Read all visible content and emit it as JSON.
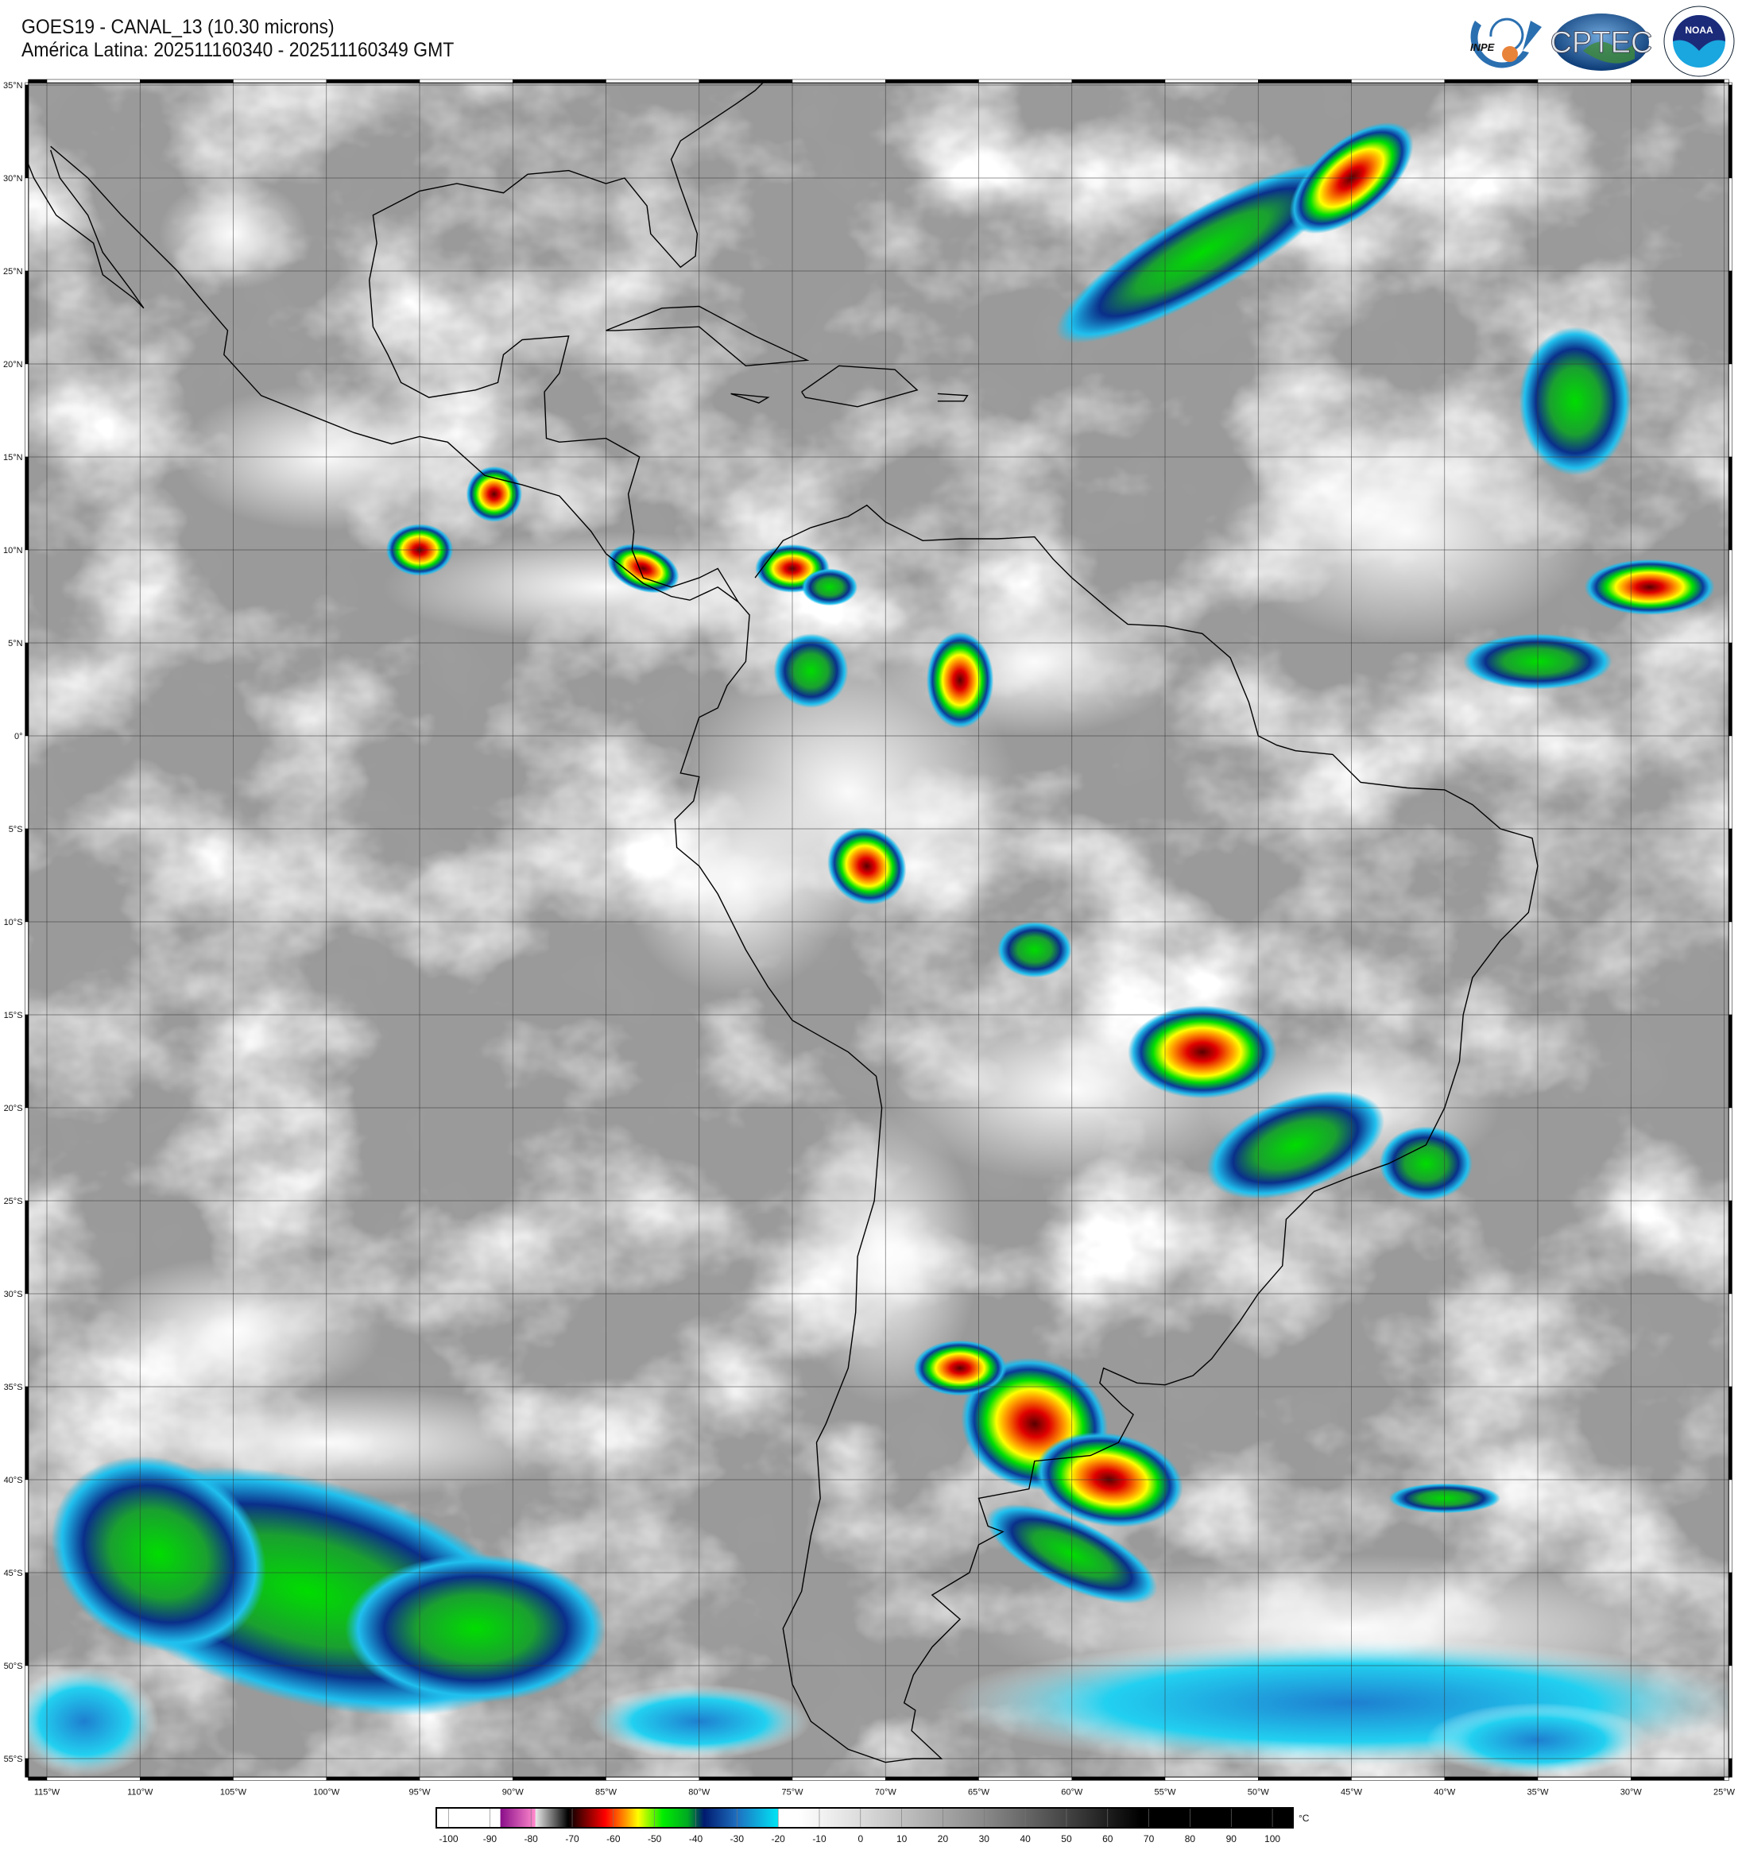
{
  "header": {
    "title_line1": "GOES19 - CANAL_13 (10.30 microns)",
    "title_line2": "América Latina: 202511160340 - 202511160349 GMT"
  },
  "logos": [
    {
      "name": "INPE",
      "text": "INPE"
    },
    {
      "name": "CPTEC",
      "text": "CPTEC"
    },
    {
      "name": "NOAA",
      "text": "NOAA",
      "ring_text": "NATIONAL OCEANIC AND ATMOSPHERIC ADMINISTRATION · U.S. DEPARTMENT OF COMMERCE"
    }
  ],
  "map": {
    "lat_labels": [
      "35°N",
      "30°N",
      "25°N",
      "20°N",
      "15°N",
      "10°N",
      "5°N",
      "0°",
      "5°S",
      "10°S",
      "15°S",
      "20°S",
      "25°S",
      "30°S",
      "35°S",
      "40°S",
      "45°S",
      "50°S",
      "55°S"
    ],
    "lon_labels": [
      "115°W",
      "110°W",
      "105°W",
      "100°W",
      "95°W",
      "90°W",
      "85°W",
      "80°W",
      "75°W",
      "70°W",
      "65°W",
      "60°W",
      "55°W",
      "50°W",
      "45°W",
      "40°W",
      "35°W",
      "30°W",
      "25°W"
    ],
    "lat_range": [
      35,
      -56
    ],
    "lon_range": [
      -116,
      -25
    ],
    "grid_step_deg": 5,
    "background_color": "#9a9a9a"
  },
  "colorbar": {
    "unit": "°C",
    "ticks": [
      "-100",
      "-90",
      "-80",
      "-70",
      "-60",
      "-50",
      "-40",
      "-30",
      "-20",
      "-10",
      "0",
      "10",
      "20",
      "30",
      "40",
      "50",
      "60",
      "70",
      "80",
      "90",
      "100"
    ],
    "range": [
      -103,
      105
    ],
    "stops": [
      {
        "t": -103,
        "c": "#ffffff"
      },
      {
        "t": -87.5,
        "c": "#ffffff"
      },
      {
        "t": -87.4,
        "c": "#8a0f8a"
      },
      {
        "t": -79,
        "c": "#ff88cc"
      },
      {
        "t": -78.9,
        "c": "#e8e8e8"
      },
      {
        "t": -72,
        "c": "#202020"
      },
      {
        "t": -71,
        "c": "#000000"
      },
      {
        "t": -62,
        "c": "#ff0000"
      },
      {
        "t": -57,
        "c": "#ff9900"
      },
      {
        "t": -54,
        "c": "#ffff00"
      },
      {
        "t": -48,
        "c": "#00ee00"
      },
      {
        "t": -42,
        "c": "#00aa22"
      },
      {
        "t": -38,
        "c": "#001a6e"
      },
      {
        "t": -30,
        "c": "#1e6fc0"
      },
      {
        "t": -20,
        "c": "#00e5f5"
      },
      {
        "t": -19.9,
        "c": "#ffffff"
      },
      {
        "t": -15,
        "c": "#ffffff"
      },
      {
        "t": 0,
        "c": "#dcdcdc"
      },
      {
        "t": 30,
        "c": "#8a8a8a"
      },
      {
        "t": 50,
        "c": "#444444"
      },
      {
        "t": 68,
        "c": "#000000"
      },
      {
        "t": 105,
        "c": "#000000"
      }
    ]
  }
}
